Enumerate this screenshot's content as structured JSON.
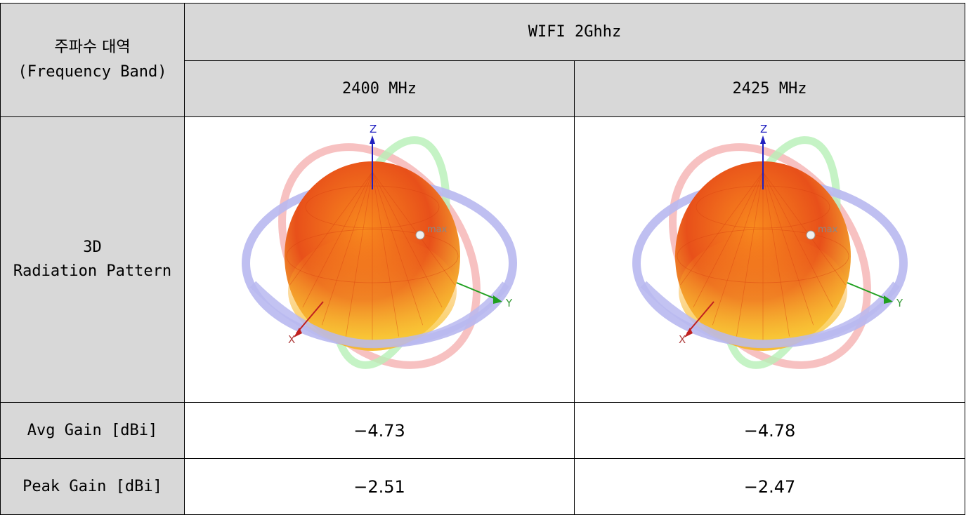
{
  "table": {
    "band_header_line1": "주파수 대역",
    "band_header_line2": "(Frequency Band)",
    "band_name": "WIFI 2Ghhz",
    "frequencies": [
      "2400 MHz",
      "2425 MHz"
    ],
    "pattern_label_line1": "3D",
    "pattern_label_line2": "Radiation Pattern",
    "avg_gain_label": "Avg Gain [dBi]",
    "avg_gain_values": [
      "-4.73",
      "-4.78"
    ],
    "peak_gain_label": "Peak Gain [dBi]",
    "peak_gain_values": [
      "-2.51",
      "-2.47"
    ]
  },
  "pattern": {
    "axis_z": "Z",
    "axis_y": "Y",
    "axis_x": "X",
    "max_label": "max",
    "colors": {
      "lobe_dark": "#e8501a",
      "lobe_mid": "#f88a1e",
      "lobe_light": "#f9d23a",
      "ring_blue": "#b8b8f0",
      "ring_red": "#f6b6b6",
      "ring_green": "#b6f0b6",
      "axis_z": "#2020c0",
      "axis_y": "#20a020",
      "axis_x": "#c02020"
    }
  }
}
